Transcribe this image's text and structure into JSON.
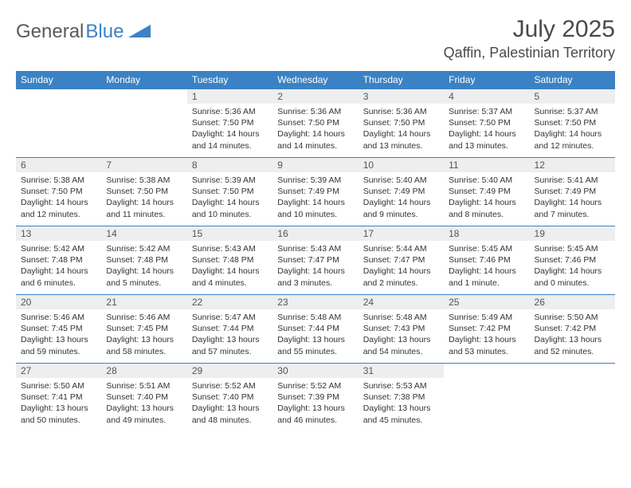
{
  "brand": {
    "text1": "General",
    "text2": "Blue"
  },
  "title": "July 2025",
  "location": "Qaffin, Palestinian Territory",
  "colors": {
    "header_bg": "#3b82c4",
    "header_text": "#ffffff",
    "daynum_bg": "#eceef0",
    "cell_border": "#3b82c4",
    "body_text": "#333333",
    "title_text": "#4a4a4a"
  },
  "day_names": [
    "Sunday",
    "Monday",
    "Tuesday",
    "Wednesday",
    "Thursday",
    "Friday",
    "Saturday"
  ],
  "weeks": [
    [
      null,
      null,
      {
        "n": "1",
        "sr": "5:36 AM",
        "ss": "7:50 PM",
        "dl": "14 hours and 14 minutes."
      },
      {
        "n": "2",
        "sr": "5:36 AM",
        "ss": "7:50 PM",
        "dl": "14 hours and 14 minutes."
      },
      {
        "n": "3",
        "sr": "5:36 AM",
        "ss": "7:50 PM",
        "dl": "14 hours and 13 minutes."
      },
      {
        "n": "4",
        "sr": "5:37 AM",
        "ss": "7:50 PM",
        "dl": "14 hours and 13 minutes."
      },
      {
        "n": "5",
        "sr": "5:37 AM",
        "ss": "7:50 PM",
        "dl": "14 hours and 12 minutes."
      }
    ],
    [
      {
        "n": "6",
        "sr": "5:38 AM",
        "ss": "7:50 PM",
        "dl": "14 hours and 12 minutes."
      },
      {
        "n": "7",
        "sr": "5:38 AM",
        "ss": "7:50 PM",
        "dl": "14 hours and 11 minutes."
      },
      {
        "n": "8",
        "sr": "5:39 AM",
        "ss": "7:50 PM",
        "dl": "14 hours and 10 minutes."
      },
      {
        "n": "9",
        "sr": "5:39 AM",
        "ss": "7:49 PM",
        "dl": "14 hours and 10 minutes."
      },
      {
        "n": "10",
        "sr": "5:40 AM",
        "ss": "7:49 PM",
        "dl": "14 hours and 9 minutes."
      },
      {
        "n": "11",
        "sr": "5:40 AM",
        "ss": "7:49 PM",
        "dl": "14 hours and 8 minutes."
      },
      {
        "n": "12",
        "sr": "5:41 AM",
        "ss": "7:49 PM",
        "dl": "14 hours and 7 minutes."
      }
    ],
    [
      {
        "n": "13",
        "sr": "5:42 AM",
        "ss": "7:48 PM",
        "dl": "14 hours and 6 minutes."
      },
      {
        "n": "14",
        "sr": "5:42 AM",
        "ss": "7:48 PM",
        "dl": "14 hours and 5 minutes."
      },
      {
        "n": "15",
        "sr": "5:43 AM",
        "ss": "7:48 PM",
        "dl": "14 hours and 4 minutes."
      },
      {
        "n": "16",
        "sr": "5:43 AM",
        "ss": "7:47 PM",
        "dl": "14 hours and 3 minutes."
      },
      {
        "n": "17",
        "sr": "5:44 AM",
        "ss": "7:47 PM",
        "dl": "14 hours and 2 minutes."
      },
      {
        "n": "18",
        "sr": "5:45 AM",
        "ss": "7:46 PM",
        "dl": "14 hours and 1 minute."
      },
      {
        "n": "19",
        "sr": "5:45 AM",
        "ss": "7:46 PM",
        "dl": "14 hours and 0 minutes."
      }
    ],
    [
      {
        "n": "20",
        "sr": "5:46 AM",
        "ss": "7:45 PM",
        "dl": "13 hours and 59 minutes."
      },
      {
        "n": "21",
        "sr": "5:46 AM",
        "ss": "7:45 PM",
        "dl": "13 hours and 58 minutes."
      },
      {
        "n": "22",
        "sr": "5:47 AM",
        "ss": "7:44 PM",
        "dl": "13 hours and 57 minutes."
      },
      {
        "n": "23",
        "sr": "5:48 AM",
        "ss": "7:44 PM",
        "dl": "13 hours and 55 minutes."
      },
      {
        "n": "24",
        "sr": "5:48 AM",
        "ss": "7:43 PM",
        "dl": "13 hours and 54 minutes."
      },
      {
        "n": "25",
        "sr": "5:49 AM",
        "ss": "7:42 PM",
        "dl": "13 hours and 53 minutes."
      },
      {
        "n": "26",
        "sr": "5:50 AM",
        "ss": "7:42 PM",
        "dl": "13 hours and 52 minutes."
      }
    ],
    [
      {
        "n": "27",
        "sr": "5:50 AM",
        "ss": "7:41 PM",
        "dl": "13 hours and 50 minutes."
      },
      {
        "n": "28",
        "sr": "5:51 AM",
        "ss": "7:40 PM",
        "dl": "13 hours and 49 minutes."
      },
      {
        "n": "29",
        "sr": "5:52 AM",
        "ss": "7:40 PM",
        "dl": "13 hours and 48 minutes."
      },
      {
        "n": "30",
        "sr": "5:52 AM",
        "ss": "7:39 PM",
        "dl": "13 hours and 46 minutes."
      },
      {
        "n": "31",
        "sr": "5:53 AM",
        "ss": "7:38 PM",
        "dl": "13 hours and 45 minutes."
      },
      null,
      null
    ]
  ],
  "labels": {
    "sunrise": "Sunrise:",
    "sunset": "Sunset:",
    "daylight": "Daylight:"
  }
}
